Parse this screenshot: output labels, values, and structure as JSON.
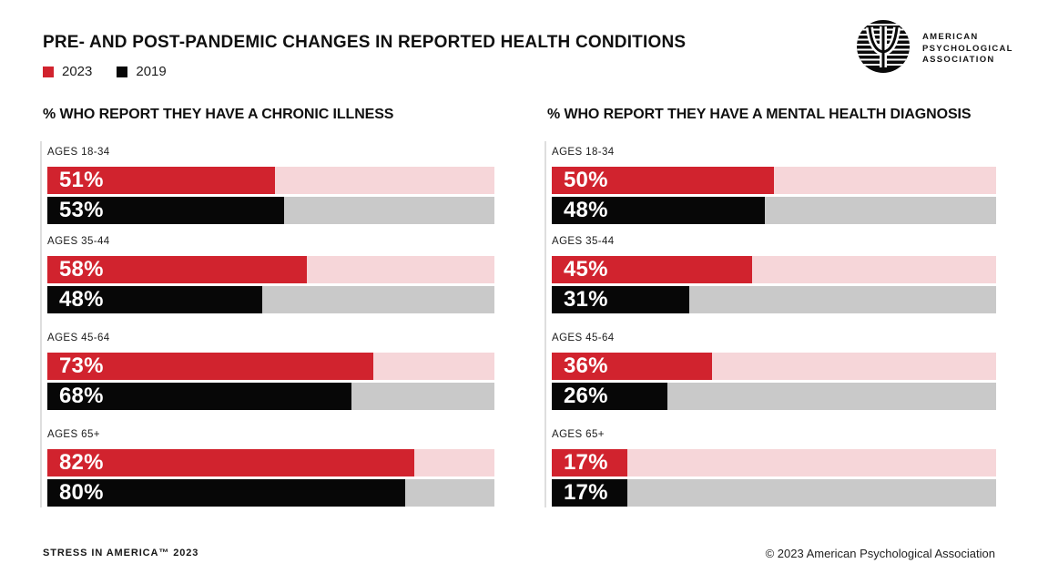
{
  "header": {
    "title": "PRE- AND POST-PANDEMIC CHANGES IN REPORTED HEALTH CONDITIONS"
  },
  "legend": {
    "items": [
      {
        "label": "2023",
        "color": "#d1232e"
      },
      {
        "label": "2019",
        "color": "#070707"
      }
    ]
  },
  "logo": {
    "lines": [
      "AMERICAN",
      "PSYCHOLOGICAL",
      "ASSOCIATION"
    ]
  },
  "colors": {
    "red": "#d1232e",
    "black": "#070707",
    "pink": "#f6d6d9",
    "gray": "#c9c9c9",
    "axis": "#dedede"
  },
  "chart_data": [
    {
      "type": "bar",
      "title": "% WHO REPORT THEY HAVE A CHRONIC ILLNESS",
      "orientation": "horizontal",
      "categories": [
        "AGES 18-34",
        "AGES 35-44",
        "AGES 45-64",
        "AGES 65+"
      ],
      "series": [
        {
          "name": "2023",
          "color": "#d1232e",
          "values": [
            51,
            58,
            73,
            82
          ]
        },
        {
          "name": "2019",
          "color": "#070707",
          "values": [
            53,
            48,
            68,
            80
          ]
        }
      ],
      "xlim": [
        0,
        100
      ],
      "value_suffix": "%",
      "grid": false,
      "legend_position": "top-left"
    },
    {
      "type": "bar",
      "title": "% WHO REPORT THEY HAVE A MENTAL HEALTH DIAGNOSIS",
      "orientation": "horizontal",
      "categories": [
        "AGES 18-34",
        "AGES 35-44",
        "AGES 45-64",
        "AGES 65+"
      ],
      "series": [
        {
          "name": "2023",
          "color": "#d1232e",
          "values": [
            50,
            45,
            36,
            17
          ]
        },
        {
          "name": "2019",
          "color": "#070707",
          "values": [
            48,
            31,
            26,
            17
          ]
        }
      ],
      "xlim": [
        0,
        100
      ],
      "value_suffix": "%",
      "grid": false,
      "legend_position": "top-left"
    }
  ],
  "footer": {
    "left": "STRESS IN AMERICA™ 2023",
    "right": "© 2023 American Psychological Association"
  }
}
